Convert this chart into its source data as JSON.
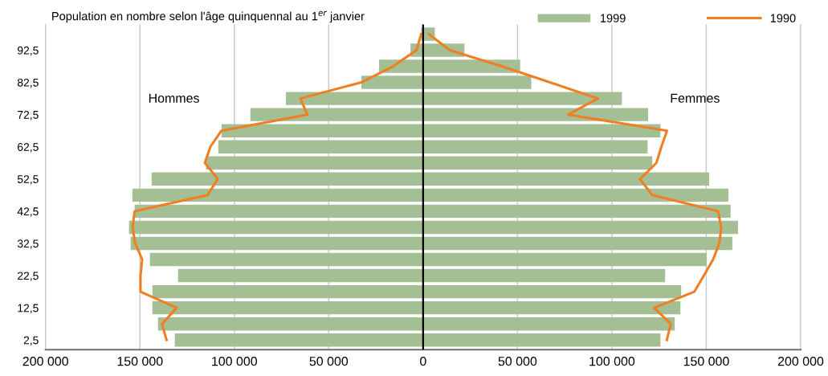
{
  "chart_data": {
    "type": "bar",
    "orientation": "horizontal",
    "title": "Population en nombre selon l'âge quinquennal au 1$^{er}$ janvier",
    "categories": [
      null,
      "92,5",
      null,
      "82,5",
      null,
      "72,5",
      null,
      "62,5",
      null,
      "52,5",
      null,
      "42,5",
      null,
      "32,5",
      null,
      "22,5",
      null,
      "12,5",
      null,
      "2,5"
    ],
    "series": [
      {
        "name": "1999",
        "color": "#a5bf95",
        "values": [
          -1000,
          -6700,
          -23300,
          -32700,
          -72700,
          -91500,
          -106800,
          -108500,
          -115000,
          -143800,
          -154000,
          -152800,
          -155800,
          -154900,
          -144700,
          -129800,
          -143400,
          -143400,
          -140400,
          -131500
        ]
      },
      {
        "color": "#a5bf95",
        "values": [
          6200,
          21900,
          51400,
          57300,
          105300,
          119200,
          125700,
          118900,
          121400,
          151500,
          161700,
          162900,
          166800,
          163800,
          150200,
          128200,
          136700,
          136300,
          133300,
          125700
        ]
      },
      {
        "name": "1990",
        "type": "line",
        "color": "#f07f22",
        "values": [
          -1000,
          -3500,
          -15900,
          -32700,
          -65000,
          -61300,
          -106800,
          -112700,
          -115600,
          -108800,
          -114200,
          -152800,
          -153900,
          -152500,
          -148800,
          -149700,
          -149700,
          -130500,
          -138300,
          -135900
        ]
      },
      {
        "type": "line",
        "color": "#f07f22",
        "values": [
          3100,
          14100,
          41700,
          67200,
          92600,
          76800,
          129200,
          126200,
          123600,
          114900,
          121400,
          156200,
          157900,
          156900,
          153600,
          148700,
          143700,
          122300,
          131200,
          129100
        ]
      }
    ],
    "xlim": [
      -200000,
      200000
    ],
    "xticks": [
      {
        "value": -200000,
        "label": "200 000"
      },
      {
        "value": -150000,
        "label": "150 000"
      },
      {
        "value": -100000,
        "label": "100 000"
      },
      {
        "value": -50000,
        "label": "50 000"
      },
      0,
      {
        "value": 50000,
        "label": "50 000"
      },
      {
        "value": 100000,
        "label": "100 000"
      },
      {
        "value": 150000,
        "label": "150 000"
      },
      {
        "value": 200000,
        "label": "200 000"
      }
    ],
    "ref_lines": [
      {
        "axis": "x",
        "value": 0,
        "color": "#000000"
      }
    ],
    "annotations": [
      "Hommes",
      "Femmes"
    ],
    "stacked": true,
    "grid": "x",
    "legend": "top right"
  }
}
